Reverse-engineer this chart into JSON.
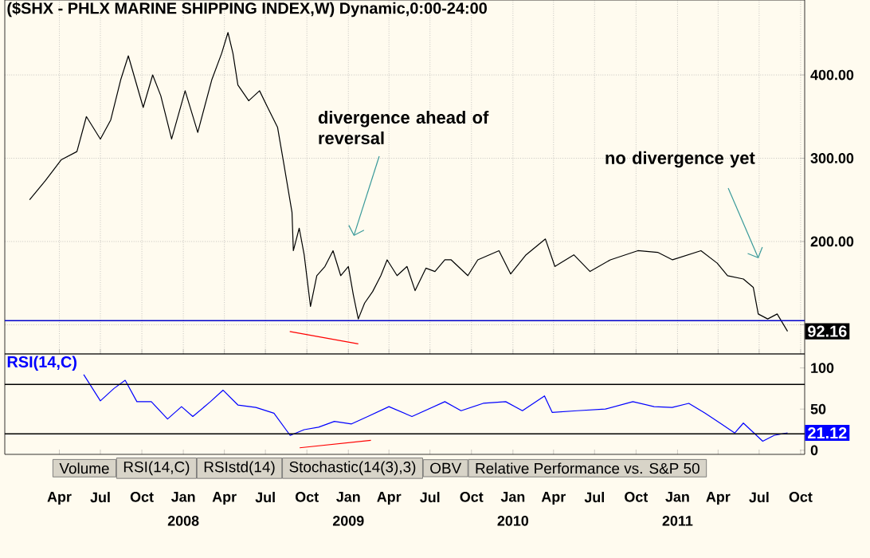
{
  "chart_data": [
    {
      "type": "line",
      "title": "($SHX - PHLX MARINE SHIPPING INDEX,W) Dynamic,0:00-24:00",
      "x": [
        "2007-01-25",
        "2007-03-01",
        "2007-04-05",
        "2007-05-10",
        "2007-05-31",
        "2007-07-01",
        "2007-07-24",
        "2007-08-15",
        "2007-09-01",
        "2007-10-04",
        "2007-10-25",
        "2007-11-12",
        "2007-12-06",
        "2008-01-05",
        "2008-02-02",
        "2008-03-04",
        "2008-03-26",
        "2008-04-09",
        "2008-04-20",
        "2008-05-01",
        "2008-05-25",
        "2008-06-18",
        "2008-07-06",
        "2008-07-28",
        "2008-08-11",
        "2008-08-29",
        "2008-09-01",
        "2008-09-14",
        "2008-09-25",
        "2008-10-09",
        "2008-10-23",
        "2008-11-10",
        "2008-11-28",
        "2008-12-15",
        "2009-01-01",
        "2009-01-12",
        "2009-01-23",
        "2009-02-06",
        "2009-02-24",
        "2009-03-14",
        "2009-03-28",
        "2009-04-19",
        "2009-05-11",
        "2009-05-29",
        "2009-06-22",
        "2009-07-12",
        "2009-08-03",
        "2009-08-17",
        "2009-09-23",
        "2009-10-15",
        "2009-12-01",
        "2009-12-27",
        "2010-01-30",
        "2010-03-14",
        "2010-04-04",
        "2010-05-16",
        "2010-06-21",
        "2010-08-05",
        "2010-10-05",
        "2010-11-18",
        "2010-12-21",
        "2011-02-22",
        "2011-03-30",
        "2011-04-22",
        "2011-05-27",
        "2011-06-18",
        "2011-06-29",
        "2011-07-20",
        "2011-08-10",
        "2011-09-02"
      ],
      "series": [
        {
          "color": "#000000",
          "values": [
            250,
            273,
            298,
            308,
            350,
            323,
            346,
            394,
            423,
            361,
            400,
            375,
            323,
            381,
            331,
            394,
            426,
            451,
            426,
            388,
            369,
            381,
            361,
            337,
            293,
            235,
            189,
            216,
            184,
            122,
            159,
            170,
            189,
            159,
            170,
            136,
            107,
            126,
            140,
            159,
            178,
            159,
            170,
            141,
            168,
            164,
            178,
            178,
            159,
            178,
            189,
            161,
            184,
            203,
            170,
            184,
            164,
            178,
            189,
            187,
            178,
            189,
            174,
            159,
            155,
            145,
            113,
            107,
            113,
            92.16
          ],
          "value_labels": [
            null,
            null,
            null,
            null,
            null,
            null,
            null,
            null,
            null,
            null,
            null,
            null,
            null,
            null,
            null,
            null,
            null,
            null,
            null,
            null,
            null,
            null,
            null,
            null,
            null,
            null,
            null,
            null,
            null,
            null,
            null,
            null,
            null,
            null,
            null,
            null,
            null,
            null,
            null,
            null,
            null,
            null,
            null,
            null,
            null,
            null,
            null,
            null,
            null,
            null,
            null,
            null,
            null,
            null,
            null,
            null,
            null,
            null,
            null,
            null,
            null,
            null,
            null,
            null,
            null,
            null,
            null,
            null,
            null,
            "92.16"
          ]
        },
        {
          "type": "line",
          "color": "#ff0000",
          "x": [
            "2008-08-24",
            "2009-01-23"
          ],
          "values": [
            92,
            77
          ]
        }
      ],
      "xlim": [
        "2006-12-01",
        "2011-10-10"
      ],
      "ylim": [
        65,
        490
      ],
      "xticks": [
        {
          "value": "2007-04",
          "label": null
        },
        {
          "value": "2007-07",
          "label": null
        },
        {
          "value": "2007-10",
          "label": null
        },
        {
          "value": "2008-01",
          "label": null
        },
        {
          "value": "2008-04",
          "label": null
        },
        {
          "value": "2008-07",
          "label": null
        },
        {
          "value": "2008-10",
          "label": null
        },
        {
          "value": "2009-01",
          "label": null
        },
        {
          "value": "2009-04",
          "label": null
        },
        {
          "value": "2009-07",
          "label": null
        },
        {
          "value": "2009-10",
          "label": null
        },
        {
          "value": "2010-01",
          "label": null
        },
        {
          "value": "2010-04",
          "label": null
        },
        {
          "value": "2010-07",
          "label": null
        },
        {
          "value": "2010-10",
          "label": null
        },
        {
          "value": "2011-01",
          "label": null
        },
        {
          "value": "2011-04",
          "label": null
        },
        {
          "value": "2011-07",
          "label": null
        },
        {
          "value": "2011-10",
          "label": null
        }
      ],
      "yticks": [
        {
          "value": 100,
          "label": null
        },
        {
          "value": 200,
          "label": "200.00"
        },
        {
          "value": 300,
          "label": "300.00"
        },
        {
          "value": 400,
          "label": "400.00"
        }
      ],
      "grid": true,
      "tick_labels": "y",
      "ref_lines": [
        {
          "axis": "y",
          "value": 105,
          "color": "#0000cc"
        }
      ],
      "annotations": [
        "divergence ahead of reversal",
        "no divergence yet"
      ]
    },
    {
      "type": "line",
      "title": "RSI(14,C)",
      "x": [
        "2007-05-25",
        "2007-07-01",
        "2007-07-31",
        "2007-08-25",
        "2007-09-20",
        "2007-10-22",
        "2007-11-27",
        "2007-12-28",
        "2008-01-22",
        "2008-03-01",
        "2008-03-29",
        "2008-05-01",
        "2008-06-10",
        "2008-07-20",
        "2008-08-25",
        "2008-09-25",
        "2008-10-27",
        "2008-12-01",
        "2009-01-08",
        "2009-02-13",
        "2009-04-01",
        "2009-05-22",
        "2009-08-03",
        "2009-09-08",
        "2009-10-27",
        "2009-12-16",
        "2010-01-22",
        "2010-03-12",
        "2010-03-29",
        "2010-05-23",
        "2010-07-25",
        "2010-09-24",
        "2010-11-10",
        "2010-12-20",
        "2011-01-26",
        "2011-03-03",
        "2011-04-08",
        "2011-05-08",
        "2011-05-27",
        "2011-07-09",
        "2011-08-03",
        "2011-09-02"
      ],
      "series": [
        {
          "color": "#0000ff",
          "values": [
            92,
            60,
            75,
            85,
            59,
            59,
            38,
            53,
            41,
            59,
            73,
            55,
            52,
            45,
            18,
            25,
            28,
            35,
            32,
            41,
            53,
            41,
            59,
            48,
            57,
            59,
            48,
            66,
            46,
            48,
            50,
            59,
            53,
            52,
            57,
            45,
            32,
            21,
            33,
            11,
            18,
            21.12
          ],
          "value_labels": [
            null,
            null,
            null,
            null,
            null,
            null,
            null,
            null,
            null,
            null,
            null,
            null,
            null,
            null,
            null,
            null,
            null,
            null,
            null,
            null,
            null,
            null,
            null,
            null,
            null,
            null,
            null,
            null,
            null,
            null,
            null,
            null,
            null,
            null,
            null,
            null,
            null,
            null,
            null,
            null,
            null,
            "21.12"
          ]
        },
        {
          "type": "line",
          "color": "#ff0000",
          "x": [
            "2008-09-15",
            "2009-02-20"
          ],
          "values": [
            3,
            12
          ]
        }
      ],
      "xlim": [
        "2006-12-01",
        "2011-10-10"
      ],
      "ylim": [
        -5,
        117
      ],
      "xticks": [
        {
          "value": "2007-04",
          "label": "Apr"
        },
        {
          "value": "2007-07",
          "label": "Jul"
        },
        {
          "value": "2007-10",
          "label": "Oct"
        },
        {
          "value": "2008-01",
          "label": "Jan"
        },
        {
          "value": "2008-04",
          "label": "Apr"
        },
        {
          "value": "2008-07",
          "label": "Jul"
        },
        {
          "value": "2008-10",
          "label": "Oct"
        },
        {
          "value": "2009-01",
          "label": "Jan"
        },
        {
          "value": "2009-04",
          "label": "Apr"
        },
        {
          "value": "2009-07",
          "label": "Jul"
        },
        {
          "value": "2009-10",
          "label": "Oct"
        },
        {
          "value": "2010-01",
          "label": "Jan"
        },
        {
          "value": "2010-04",
          "label": "Apr"
        },
        {
          "value": "2010-07",
          "label": "Jul"
        },
        {
          "value": "2010-10",
          "label": "Oct"
        },
        {
          "value": "2011-01",
          "label": "Jan"
        },
        {
          "value": "2011-04",
          "label": "Apr"
        },
        {
          "value": "2011-07",
          "label": "Jul"
        },
        {
          "value": "2011-10",
          "label": "Oct"
        }
      ],
      "x2lim": [
        "2006-12-01",
        "2011-10-10"
      ],
      "x2ticks": [
        "2008",
        "2009",
        "2010",
        "2011"
      ],
      "yticks": [
        0,
        50,
        100
      ],
      "ref_lines": [
        {
          "axis": "y",
          "value": 80,
          "color": "#000000"
        },
        {
          "axis": "y",
          "value": 20,
          "color": "#000000"
        }
      ],
      "annotations": [
        "Volume",
        "RSI(14,C)",
        "RSIstd(14)",
        "Stochastic(14(3),3)",
        "OBV",
        "Relative Performance vs. S&P 50"
      ]
    }
  ]
}
